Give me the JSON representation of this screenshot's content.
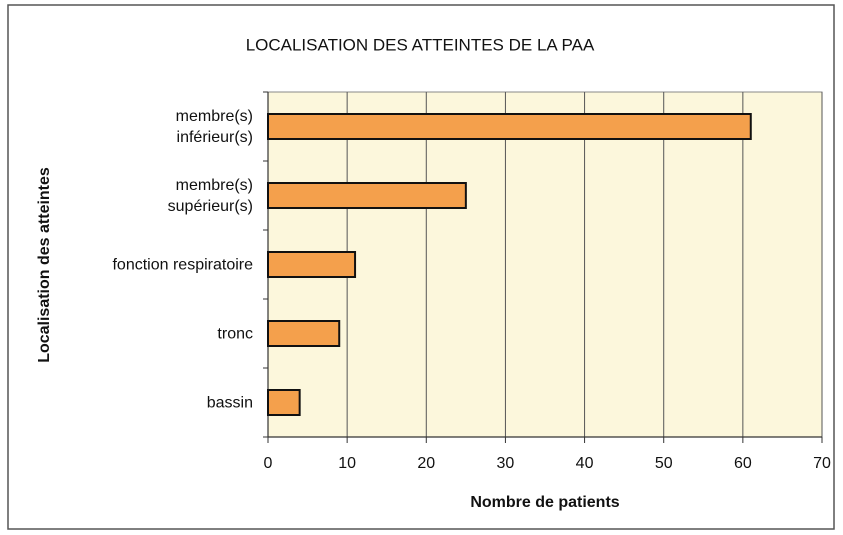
{
  "chart_data": {
    "type": "bar",
    "orientation": "horizontal",
    "title": "LOCALISATION DES ATTEINTES DE LA PAA",
    "xlabel": "Nombre de patients",
    "ylabel": "Localisation des atteintes",
    "categories": [
      "membre(s)\ninférieur(s)",
      "membre(s)\nsupérieur(s)",
      "fonction respiratoire",
      "tronc",
      "bassin"
    ],
    "values": [
      61,
      25,
      11,
      9,
      4
    ],
    "color": "#f4a04c",
    "xlim": [
      0,
      70
    ],
    "xticks": [
      0,
      10,
      20,
      30,
      40,
      50,
      60,
      70
    ],
    "grid": true
  }
}
